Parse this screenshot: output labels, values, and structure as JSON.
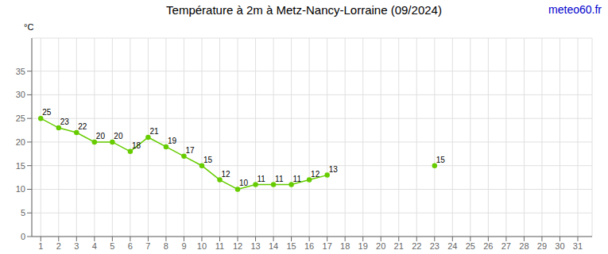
{
  "chart_data": {
    "type": "line",
    "title": "Température à 2m à Metz-Nancy-Lorraine (09/2024)",
    "ylabel": "°C",
    "annotations": [
      {
        "text": "meteo60.fr",
        "color": "#0000cc"
      }
    ],
    "x": [
      1,
      2,
      3,
      4,
      5,
      6,
      7,
      8,
      9,
      10,
      11,
      12,
      13,
      14,
      15,
      16,
      17,
      18,
      19,
      20,
      21,
      22,
      23,
      24,
      25,
      26,
      27,
      28,
      29,
      30,
      31
    ],
    "values": [
      25,
      23,
      22,
      20,
      20,
      18,
      21,
      19,
      17,
      15,
      12,
      10,
      11,
      11,
      11,
      12,
      13,
      null,
      null,
      null,
      null,
      null,
      15,
      null,
      null,
      null,
      null,
      null,
      null,
      null,
      null
    ],
    "color": "#66cc00",
    "marker": "circle",
    "xlim": [
      0.5,
      31.8
    ],
    "xticks": [
      1,
      2,
      3,
      4,
      5,
      6,
      7,
      8,
      9,
      10,
      11,
      12,
      13,
      14,
      15,
      16,
      17,
      18,
      19,
      20,
      21,
      22,
      23,
      24,
      25,
      26,
      27,
      28,
      29,
      30,
      31
    ],
    "ylim": [
      0,
      42
    ],
    "yticks": [
      0,
      5,
      10,
      15,
      20,
      25,
      30,
      35
    ],
    "grid": true,
    "data_labels": true
  }
}
